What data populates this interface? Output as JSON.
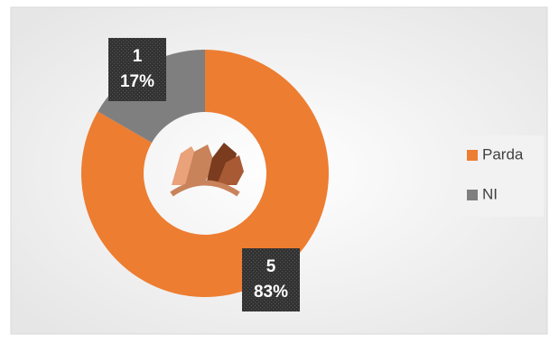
{
  "chart_data": {
    "type": "donut",
    "series": [
      {
        "name": "Parda",
        "color": "#ED7D31",
        "values": [
          5
        ],
        "percent_labels": [
          "83%"
        ]
      },
      {
        "name": "NI",
        "color": "#7F7F7F",
        "values": [
          1
        ],
        "percent_labels": [
          "17%"
        ]
      }
    ],
    "legend": "right"
  }
}
